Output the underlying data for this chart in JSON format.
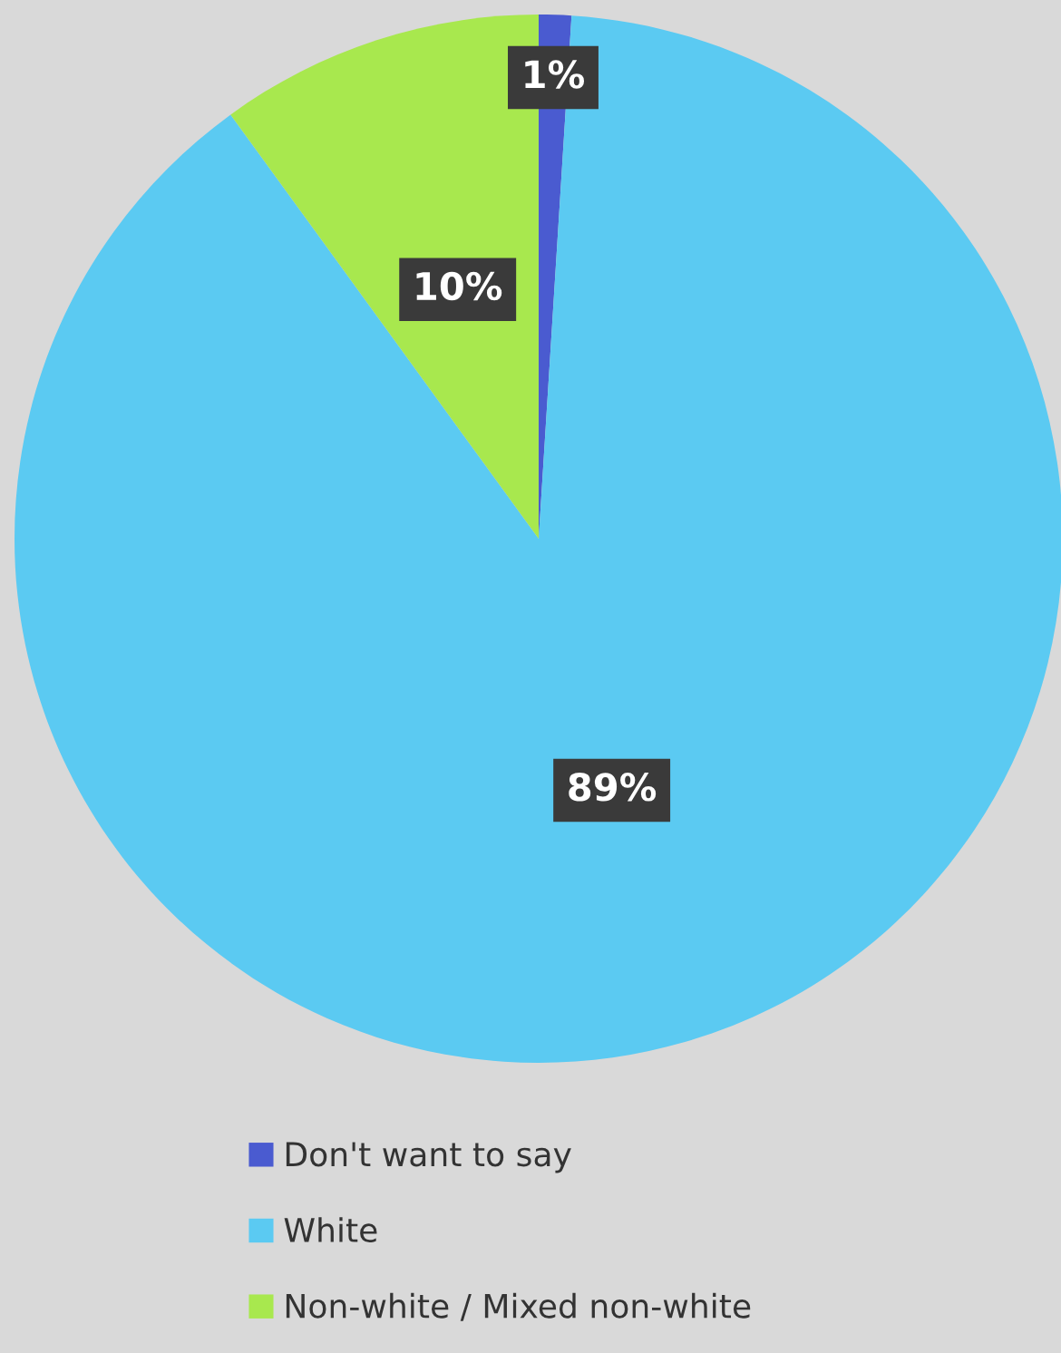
{
  "chart_data": {
    "type": "pie",
    "categories": [
      "Don't want to say",
      "White",
      "Non-white / Mixed non-white"
    ],
    "values": [
      1,
      89,
      10
    ],
    "colors": [
      "#4a5bd0",
      "#5bcaf2",
      "#a8e84e"
    ],
    "value_labels": [
      "1%",
      "89%",
      "10%"
    ],
    "legend": "bottom"
  }
}
